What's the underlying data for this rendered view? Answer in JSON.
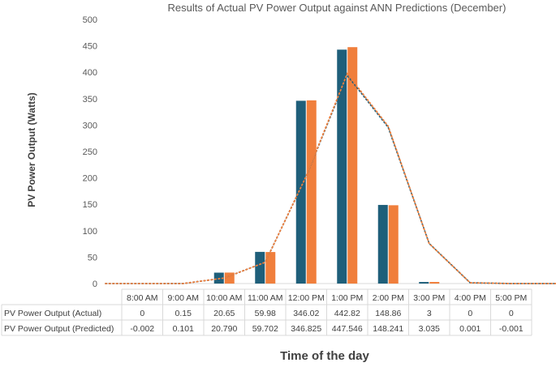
{
  "chart_data": {
    "type": "bar",
    "title": "Results of Actual PV Power Output against ANN Predictions (December)",
    "xlabel": "Time of the day",
    "ylabel": "PV Power Output (Watts)",
    "ylim": [
      0,
      500
    ],
    "yticks": [
      "0",
      "50",
      "100",
      "150",
      "200",
      "250",
      "300",
      "350",
      "400",
      "450",
      "500"
    ],
    "categories": [
      "8:00 AM",
      "9:00 AM",
      "10:00 AM",
      "11:00 AM",
      "12:00 PM",
      "1:00 PM",
      "2:00 PM",
      "3:00 PM",
      "4:00 PM",
      "5:00 PM"
    ],
    "series": [
      {
        "name": "PV Power Output (Actual)",
        "color": "#1f5f7a",
        "values": [
          0,
          0.15,
          20.65,
          59.98,
          346.02,
          442.82,
          148.86,
          3,
          0,
          0
        ],
        "labels": [
          "0",
          "0.15",
          "20.65",
          "59.98",
          "346.02",
          "442.82",
          "148.86",
          "3",
          "0",
          "0"
        ]
      },
      {
        "name": "PV Power Output (Predicted)",
        "color": "#f07f3c",
        "values": [
          -0.002,
          0.101,
          20.79,
          59.702,
          346.825,
          447.546,
          148.241,
          3.035,
          0.001,
          -0.001
        ],
        "labels": [
          "-0.002",
          "0.101",
          "20.790",
          "59.702",
          "346.825",
          "447.546",
          "148.241",
          "3.035",
          "0.001",
          "-0.001"
        ]
      }
    ],
    "trendlines": "dotted moving average per series",
    "grid": false,
    "data_table": true
  }
}
